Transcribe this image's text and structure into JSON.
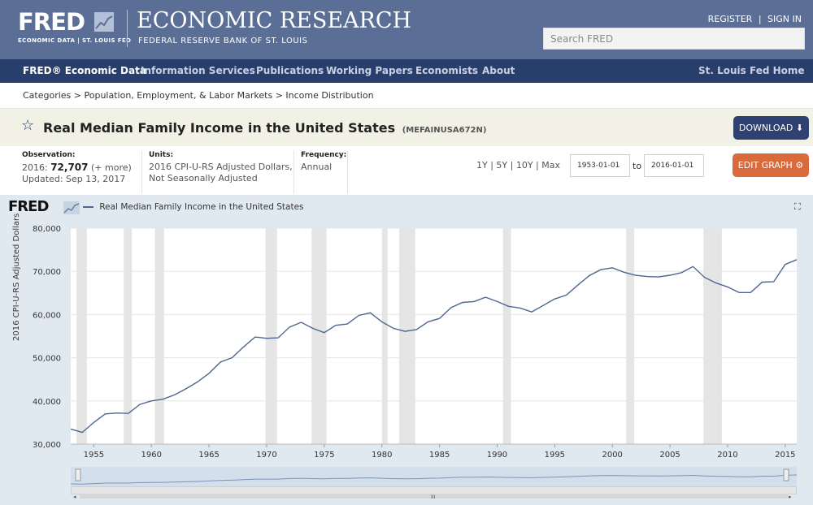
{
  "header": {
    "logo_text": "FRED",
    "logo_sub": "ECONOMIC DATA | ST. LOUIS FED",
    "title": "ECONOMIC RESEARCH",
    "subtitle": "FEDERAL RESERVE BANK OF ST. LOUIS",
    "register": "REGISTER",
    "separator": "|",
    "signin": "SIGN IN",
    "search_placeholder": "Search FRED"
  },
  "nav": {
    "items": [
      "FRED® Economic Data",
      "Information Services",
      "Publications",
      "Working Papers",
      "Economists",
      "About"
    ],
    "right": "St. Louis Fed Home"
  },
  "breadcrumb": "Categories > Population, Employment, & Labor Markets > Income Distribution",
  "series": {
    "title": "Real Median Family Income in the United States",
    "id": "(MEFAINUSA672N)",
    "download": "DOWNLOAD ⬇"
  },
  "meta": {
    "observation_label": "Observation:",
    "observation_year": "2016:",
    "observation_value": "72,707",
    "observation_more": "(+ more)",
    "updated": "Updated: Sep 13, 2017",
    "units_label": "Units:",
    "units_line1": "2016 CPI-U-RS Adjusted Dollars,",
    "units_line2": "Not Seasonally Adjusted",
    "frequency_label": "Frequency:",
    "frequency_value": "Annual"
  },
  "range": {
    "links": "1Y | 5Y | 10Y | Max",
    "start": "1953-01-01",
    "to": "to",
    "end": "2016-01-01",
    "edit": "EDIT GRAPH ⚙"
  },
  "graph": {
    "logo": "FRED",
    "legend": "Real Median Family Income in the United States",
    "expand_icon": "⛶"
  },
  "chart_data": {
    "type": "line",
    "xlabel": "",
    "ylabel": "2016 CPI-U-RS Adjusted Dollars",
    "xlim": [
      1953,
      2016
    ],
    "ylim": [
      30000,
      80000
    ],
    "yticks": [
      "30,000",
      "40,000",
      "50,000",
      "60,000",
      "70,000",
      "80,000"
    ],
    "xticks": [
      "1955",
      "1960",
      "1965",
      "1970",
      "1975",
      "1980",
      "1985",
      "1990",
      "1995",
      "2000",
      "2005",
      "2010",
      "2015"
    ],
    "recessions": [
      [
        1953.5,
        1954.4
      ],
      [
        1957.6,
        1958.3
      ],
      [
        1960.3,
        1961.1
      ],
      [
        1969.9,
        1970.9
      ],
      [
        1973.9,
        1975.2
      ],
      [
        1980.0,
        1980.5
      ],
      [
        1981.5,
        1982.9
      ],
      [
        1990.5,
        1991.2
      ],
      [
        2001.2,
        2001.9
      ],
      [
        2007.9,
        2009.5
      ]
    ],
    "series": [
      {
        "color": "#4e6790",
        "x": [
          1953,
          1954,
          1955,
          1956,
          1957,
          1958,
          1959,
          1960,
          1961,
          1962,
          1963,
          1964,
          1965,
          1966,
          1967,
          1968,
          1969,
          1970,
          1971,
          1972,
          1973,
          1974,
          1975,
          1976,
          1977,
          1978,
          1979,
          1980,
          1981,
          1982,
          1983,
          1984,
          1985,
          1986,
          1987,
          1988,
          1989,
          1990,
          1991,
          1992,
          1993,
          1994,
          1995,
          1996,
          1997,
          1998,
          1999,
          2000,
          2001,
          2002,
          2003,
          2004,
          2005,
          2006,
          2007,
          2008,
          2009,
          2010,
          2011,
          2012,
          2013,
          2014,
          2015,
          2016
        ],
        "y": [
          33500,
          32700,
          35000,
          37000,
          37200,
          37100,
          39200,
          40000,
          40400,
          41400,
          42800,
          44400,
          46400,
          49000,
          50000,
          52500,
          54800,
          54500,
          54600,
          57100,
          58200,
          56800,
          55800,
          57500,
          57800,
          59800,
          60400,
          58300,
          56800,
          56100,
          56500,
          58300,
          59100,
          61600,
          62800,
          63000,
          64000,
          63000,
          61900,
          61500,
          60600,
          62100,
          63600,
          64500,
          66800,
          69000,
          70400,
          70800,
          69800,
          69100,
          68800,
          68700,
          69100,
          69700,
          71100,
          68600,
          67300,
          66400,
          65100,
          65100,
          67500,
          67600,
          71600,
          72707
        ]
      }
    ]
  }
}
